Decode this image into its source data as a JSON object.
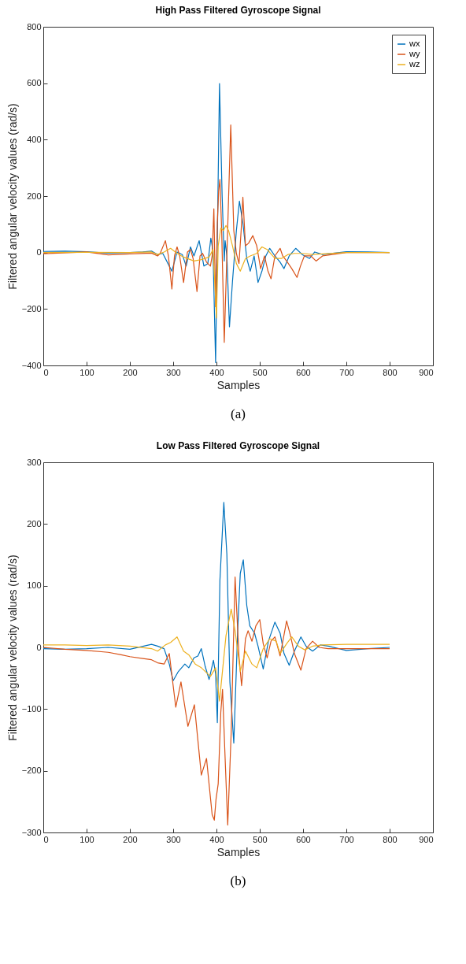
{
  "chart_data": [
    {
      "type": "line",
      "title": "High Pass Filtered Gyroscope Signal",
      "xlabel": "Samples",
      "ylabel": "Filtered angular velocity values (rad/s)",
      "annotations": [
        "(a)"
      ],
      "legend": "top right",
      "xlim": [
        0,
        900
      ],
      "xticks": [
        0,
        100,
        200,
        300,
        400,
        500,
        600,
        700,
        800,
        900
      ],
      "ylim": [
        -400,
        800
      ],
      "yticks": [
        -400,
        -200,
        0,
        200,
        400,
        600,
        800
      ],
      "series": [
        {
          "name": "wx",
          "color": "#0072bd",
          "x": [
            0,
            50,
            100,
            150,
            200,
            230,
            250,
            264,
            276,
            291,
            297,
            309,
            321,
            330,
            340,
            348,
            360,
            371,
            380,
            387,
            392,
            398,
            407,
            413,
            418,
            420,
            424,
            430,
            437,
            446,
            453,
            461,
            470,
            478,
            487,
            496,
            505,
            514,
            523,
            535,
            547,
            556,
            568,
            583,
            598,
            615,
            627,
            645,
            700,
            750,
            800
          ],
          "values": [
            4,
            5,
            3,
            -2,
            0,
            2,
            5,
            -7,
            -3,
            -48,
            -66,
            2,
            -7,
            -48,
            20,
            -12,
            42,
            -48,
            -39,
            51,
            6,
            -390,
            599,
            205,
            -30,
            42,
            -12,
            -263,
            -102,
            78,
            182,
            105,
            -21,
            -66,
            -12,
            -106,
            -66,
            -12,
            15,
            -12,
            -34,
            -57,
            -12,
            15,
            -7,
            -21,
            2,
            -7,
            3,
            2,
            0
          ]
        },
        {
          "name": "wy",
          "color": "#d95319",
          "x": [
            0,
            100,
            150,
            200,
            250,
            264,
            270,
            282,
            289,
            297,
            303,
            309,
            315,
            324,
            333,
            340,
            346,
            355,
            362,
            368,
            377,
            386,
            390,
            394,
            398,
            402,
            405,
            408,
            412,
            418,
            424,
            433,
            440,
            446,
            452,
            457,
            461,
            467,
            474,
            484,
            493,
            502,
            511,
            519,
            526,
            535,
            547,
            553,
            562,
            574,
            586,
            594,
            603,
            618,
            630,
            645,
            700,
            800
          ],
          "values": [
            -4,
            2,
            -8,
            -5,
            -2,
            -12,
            -3,
            42,
            -12,
            -129,
            -12,
            20,
            -12,
            -106,
            2,
            11,
            -21,
            -138,
            -12,
            -3,
            -34,
            -48,
            -12,
            155,
            -192,
            105,
            218,
            259,
            78,
            -318,
            -12,
            452,
            78,
            -3,
            -39,
            78,
            196,
            24,
            33,
            60,
            24,
            -57,
            -12,
            -66,
            -93,
            -12,
            15,
            -12,
            -30,
            -57,
            -88,
            -48,
            -12,
            -12,
            -30,
            -12,
            0,
            0
          ]
        },
        {
          "name": "wz",
          "color": "#edb120",
          "x": [
            0,
            100,
            200,
            250,
            264,
            279,
            294,
            309,
            324,
            348,
            365,
            383,
            392,
            396,
            400,
            404,
            410,
            416,
            422,
            428,
            437,
            446,
            455,
            467,
            478,
            493,
            505,
            517,
            535,
            550,
            565,
            580,
            598,
            622,
            700,
            800
          ],
          "values": [
            0,
            1,
            0,
            2,
            -7,
            2,
            15,
            -3,
            -16,
            -30,
            -25,
            -16,
            11,
            -102,
            -232,
            24,
            87,
            78,
            96,
            78,
            24,
            -39,
            -66,
            -21,
            -12,
            -3,
            20,
            11,
            -21,
            -21,
            -7,
            -3,
            -3,
            -7,
            0,
            0
          ]
        }
      ]
    },
    {
      "type": "line",
      "title": "Low Pass Filtered Gyroscope Signal",
      "xlabel": "Samples",
      "ylabel": "Filtered angular velocity values (rad/s)",
      "annotations": [
        "(b)"
      ],
      "legend": "top right",
      "xlim": [
        0,
        900
      ],
      "xticks": [
        0,
        100,
        200,
        300,
        400,
        500,
        600,
        700,
        800,
        900
      ],
      "ylim": [
        -300,
        300
      ],
      "yticks": [
        -300,
        -200,
        -100,
        0,
        100,
        200,
        300
      ],
      "series": [
        {
          "name": "wx",
          "color": "#0072bd",
          "x": [
            0,
            50,
            100,
            150,
            200,
            250,
            264,
            279,
            291,
            300,
            312,
            327,
            336,
            348,
            357,
            365,
            374,
            383,
            393,
            398,
            402,
            408,
            417,
            424,
            431,
            440,
            449,
            455,
            462,
            470,
            477,
            488,
            496,
            508,
            520,
            535,
            547,
            556,
            568,
            580,
            595,
            607,
            622,
            640,
            658,
            700,
            750,
            800
          ],
          "values": [
            -2,
            -3,
            -2,
            0,
            -3,
            5,
            2,
            -2,
            -27,
            -54,
            -39,
            -27,
            -33,
            -17,
            -14,
            -2,
            -31,
            -52,
            -21,
            -43,
            -122,
            109,
            235,
            151,
            -56,
            -155,
            27,
            120,
            142,
            68,
            35,
            23,
            2,
            -35,
            10,
            41,
            23,
            -10,
            -29,
            -6,
            17,
            2,
            -6,
            4,
            2,
            -5,
            -2,
            0
          ]
        },
        {
          "name": "wy",
          "color": "#d95319",
          "x": [
            0,
            50,
            100,
            150,
            180,
            200,
            230,
            250,
            264,
            279,
            291,
            306,
            318,
            334,
            349,
            365,
            377,
            390,
            395,
            399,
            404,
            410,
            414,
            420,
            426,
            434,
            443,
            452,
            458,
            467,
            473,
            482,
            491,
            500,
            508,
            517,
            526,
            535,
            547,
            562,
            571,
            580,
            595,
            607,
            622,
            637,
            658,
            700,
            800
          ],
          "values": [
            0,
            -3,
            -5,
            -8,
            -12,
            -15,
            -18,
            -20,
            -25,
            -27,
            -10,
            -97,
            -56,
            -128,
            -93,
            -207,
            -180,
            -271,
            -280,
            -246,
            -221,
            -105,
            -68,
            -180,
            -288,
            -138,
            114,
            -14,
            -62,
            14,
            27,
            10,
            35,
            45,
            6,
            -17,
            10,
            17,
            -14,
            43,
            19,
            -10,
            -37,
            -2,
            10,
            0,
            -2,
            -2,
            -2
          ]
        },
        {
          "name": "wz",
          "color": "#edb120",
          "x": [
            0,
            50,
            100,
            150,
            200,
            250,
            264,
            282,
            294,
            309,
            324,
            336,
            351,
            365,
            377,
            386,
            398,
            407,
            422,
            434,
            443,
            455,
            467,
            482,
            493,
            508,
            523,
            538,
            547,
            562,
            574,
            589,
            604,
            622,
            645,
            700,
            800
          ],
          "values": [
            4,
            4,
            3,
            4,
            2,
            -2,
            -6,
            4,
            8,
            17,
            -6,
            -12,
            -27,
            -33,
            -41,
            -47,
            -33,
            -87,
            19,
            62,
            27,
            -39,
            -6,
            -27,
            -33,
            -2,
            14,
            10,
            -10,
            6,
            17,
            2,
            -4,
            2,
            4,
            5,
            5
          ]
        }
      ]
    }
  ]
}
